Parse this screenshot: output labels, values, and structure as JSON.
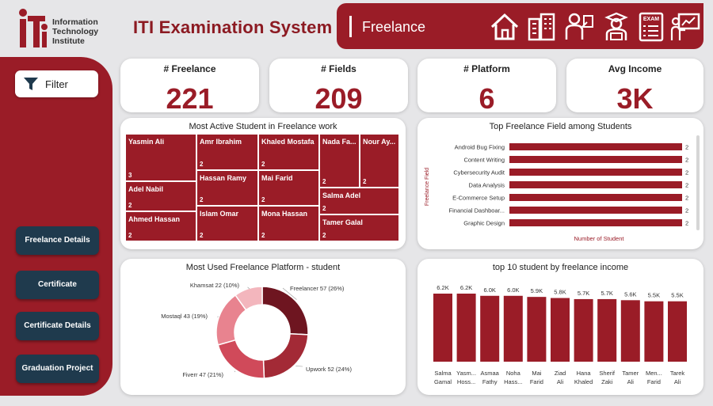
{
  "header": {
    "logo_lines": [
      "Information",
      "Technology",
      "Institute"
    ],
    "title": "ITI Examination System",
    "section": "Freelance",
    "icons": [
      "home-icon",
      "buildings-icon",
      "instructor-icon",
      "student-icon",
      "exam-icon",
      "presentation-icon"
    ]
  },
  "sidebar": {
    "filter_label": "Filter",
    "nav": [
      "Freelance Details",
      "Certificate",
      "Certificate Details",
      "Graduation Project"
    ]
  },
  "kpis": [
    {
      "label": "# Freelance",
      "value": "221"
    },
    {
      "label": "# Fields",
      "value": "209"
    },
    {
      "label": "# Platform",
      "value": "6"
    },
    {
      "label": "Avg Income",
      "value": "3K"
    }
  ],
  "colors": {
    "accent": "#9a1c27",
    "nav": "#1f3a4d"
  },
  "treemap": {
    "title": "Most Active Student in Freelance work",
    "tiles": [
      {
        "name": "Yasmin Ali",
        "count": "3"
      },
      {
        "name": "Adel Nabil",
        "count": "2"
      },
      {
        "name": "Ahmed Hassan",
        "count": "2"
      },
      {
        "name": "Amr Ibrahim",
        "count": "2"
      },
      {
        "name": "Hassan Ramy",
        "count": "2"
      },
      {
        "name": "Islam Omar",
        "count": "2"
      },
      {
        "name": "Khaled Mostafa",
        "count": "2"
      },
      {
        "name": "Mai Farid",
        "count": "2"
      },
      {
        "name": "Mona Hassan",
        "count": "2"
      },
      {
        "name": "Nada Fa...",
        "count": "2"
      },
      {
        "name": "Nour Ay...",
        "count": "2"
      },
      {
        "name": "Salma Adel",
        "count": "2"
      },
      {
        "name": "Tamer Galal",
        "count": "2"
      }
    ]
  },
  "chart_data": [
    {
      "type": "bar",
      "orientation": "horizontal",
      "title": "Top Freelance Field among Students",
      "categories": [
        "Android Bug Fixing",
        "Content Writing",
        "Cybersecurity Audit",
        "Data Analysis",
        "E-Commerce Setup",
        "Financial Dashboar...",
        "Graphic Design"
      ],
      "values": [
        2,
        2,
        2,
        2,
        2,
        2,
        2
      ],
      "xlabel": "Number of Student",
      "ylabel": "Freelance Field"
    },
    {
      "type": "pie",
      "title": "Most Used Freelance Platform - student",
      "labels": [
        "Freelancer 57 (26%)",
        "Upwork 52 (24%)",
        "Fiverr 47 (21%)",
        "Mostaql 43 (19%)",
        "Khamsat 22 (10%)"
      ],
      "values": [
        57,
        52,
        47,
        43,
        22
      ],
      "colors": [
        "#6e1520",
        "#a32a36",
        "#d04a5a",
        "#e8838f",
        "#f3b6bd"
      ]
    },
    {
      "type": "bar",
      "title": "top 10 student by freelance income",
      "categories": [
        [
          "Salma",
          "Gamal"
        ],
        [
          "Yasm...",
          "Hoss..."
        ],
        [
          "Asmaa",
          "Fathy"
        ],
        [
          "Noha",
          "Hass..."
        ],
        [
          "Mai",
          "Farid"
        ],
        [
          "Ziad",
          "Ali"
        ],
        [
          "Hana",
          "Khaled"
        ],
        [
          "Sherif",
          "Zaki"
        ],
        [
          "Tamer",
          "Ali"
        ],
        [
          "Men...",
          "Farid"
        ],
        [
          "Tarek",
          "Ali"
        ]
      ],
      "values": [
        6.2,
        6.2,
        6.0,
        6.0,
        5.9,
        5.8,
        5.7,
        5.7,
        5.6,
        5.5,
        5.5
      ],
      "labels": [
        "6.2K",
        "6.2K",
        "6.0K",
        "6.0K",
        "5.9K",
        "5.8K",
        "5.7K",
        "5.7K",
        "5.6K",
        "5.5K",
        "5.5K"
      ]
    }
  ]
}
